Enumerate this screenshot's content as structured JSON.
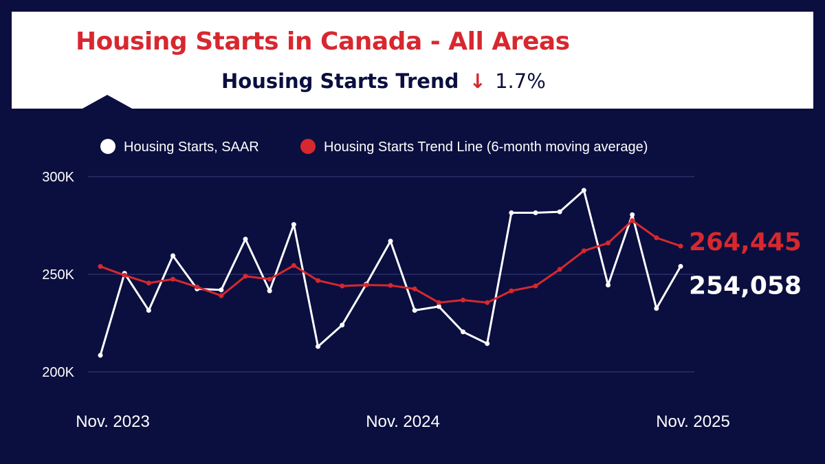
{
  "header": {
    "title": "Housing Starts in Canada - All Areas",
    "subtitle": "Housing Starts Trend",
    "trend_arrow": "↓",
    "trend_value": "1.7%"
  },
  "colors": {
    "background": "#0b0f3f",
    "header_background": "#ffffff",
    "accent_red": "#d7282f",
    "series_white": "#ffffff",
    "gridline": "#2a2f66"
  },
  "chart_data": {
    "type": "line",
    "title": "Housing Starts in Canada - All Areas",
    "xlabel": "",
    "ylabel": "",
    "ylim": [
      200000,
      300000
    ],
    "yticks": [
      200000,
      250000,
      300000
    ],
    "ytick_labels": [
      "200K",
      "250K",
      "300K"
    ],
    "xtick_labels": [
      {
        "index": 0,
        "label": "Nov. 2023"
      },
      {
        "index": 12,
        "label": "Nov. 2024"
      },
      {
        "index": 24,
        "label": "Nov. 2025"
      }
    ],
    "grid": true,
    "legend": "top-center",
    "series": [
      {
        "name": "Housing Starts, SAAR",
        "color": "#ffffff",
        "values": [
          208500,
          250500,
          231500,
          259500,
          242500,
          242000,
          268000,
          241500,
          275500,
          213000,
          224000,
          245000,
          267000,
          231500,
          233500,
          220500,
          214500,
          281500,
          281500,
          282000,
          293000,
          244500,
          280500,
          232500,
          254058
        ],
        "end_label": "254,058"
      },
      {
        "name": "Housing Starts Trend Line (6-month moving average)",
        "color": "#d7282f",
        "values": [
          254000,
          249500,
          245500,
          247500,
          243500,
          239000,
          249000,
          247500,
          254500,
          246800,
          244000,
          244500,
          244300,
          242500,
          235500,
          236800,
          235500,
          241500,
          244000,
          252500,
          262000,
          266000,
          277500,
          268700,
          264445
        ],
        "end_label": "264,445"
      }
    ]
  }
}
